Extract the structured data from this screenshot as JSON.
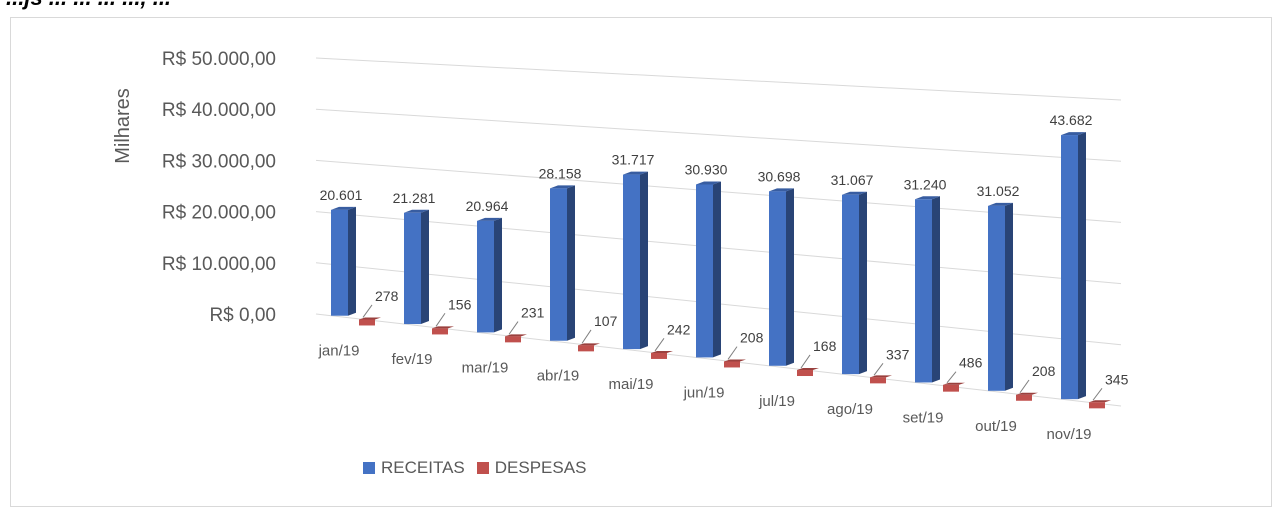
{
  "page": {
    "title_fragment": "...js ... ... ... ..., ..."
  },
  "chart_data": {
    "type": "bar",
    "title": "",
    "ylabel": "Milhares",
    "ylim": [
      0,
      50000
    ],
    "y_ticks": [
      "R$ 0,00",
      "R$ 10.000,00",
      "R$ 20.000,00",
      "R$ 30.000,00",
      "R$ 40.000,00",
      "R$ 50.000,00"
    ],
    "categories": [
      "jan/19",
      "fev/19",
      "mar/19",
      "abr/19",
      "mai/19",
      "jun/19",
      "jul/19",
      "ago/19",
      "set/19",
      "out/19",
      "nov/19"
    ],
    "series": [
      {
        "name": "RECEITAS",
        "color": "#4472c4",
        "values": [
          20601,
          21281,
          20964,
          28158,
          31717,
          30930,
          30698,
          31067,
          31240,
          31052,
          43682
        ],
        "labels": [
          "20.601",
          "21.281",
          "20.964",
          "28.158",
          "31.717",
          "30.930",
          "30.698",
          "31.067",
          "31.240",
          "31.052",
          "43.682"
        ]
      },
      {
        "name": "DESPESAS",
        "color": "#c0504d",
        "values": [
          278,
          156,
          231,
          107,
          242,
          208,
          168,
          337,
          486,
          208,
          345
        ],
        "labels": [
          "278",
          "156",
          "231",
          "107",
          "242",
          "208",
          "168",
          "337",
          "486",
          "208",
          "345"
        ]
      }
    ],
    "grid": true,
    "legend_position": "bottom-left",
    "perspective": "3d"
  }
}
